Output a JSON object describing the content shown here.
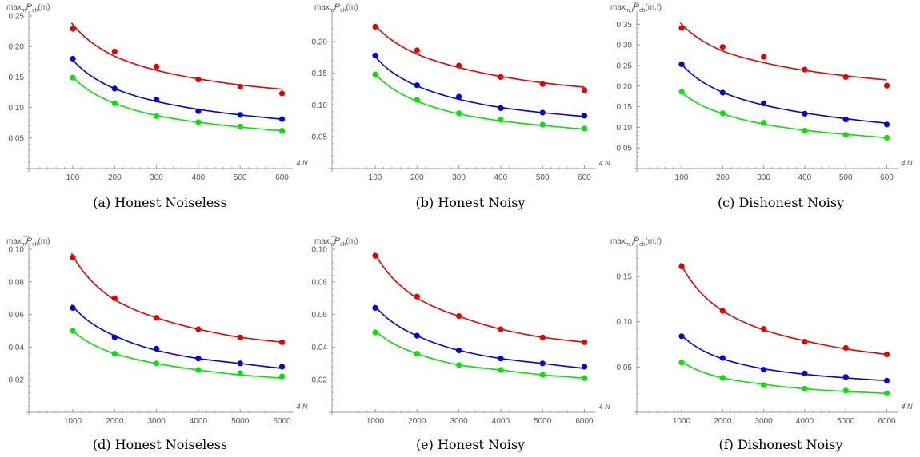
{
  "colors": {
    "red": "#e60000",
    "blue": "#0000e6",
    "green": "#00e600",
    "axis": "#999999",
    "text": "#555555"
  },
  "chart_data": [
    {
      "type": "scatter",
      "panel": "a",
      "caption": "(a) Honest Noiseless",
      "ylabel": {
        "pre": "max",
        "sub": "m",
        "main": "P",
        "overbar": false,
        "sub2": "ch",
        "post": "(m)"
      },
      "xlabel": "4 N",
      "x": [
        100,
        200,
        300,
        400,
        500,
        600
      ],
      "xticks": [
        100,
        200,
        300,
        400,
        500,
        600
      ],
      "yticks": [
        0.05,
        0.1,
        0.15,
        0.2,
        0.25
      ],
      "ytick_labels": [
        "0.05",
        "0.10",
        "0.15",
        "0.20",
        "0.25"
      ],
      "xlim": [
        0,
        640
      ],
      "ylim": [
        0,
        0.25
      ],
      "series": [
        {
          "color": "red",
          "values": [
            0.229,
            0.192,
            0.167,
            0.146,
            0.134,
            0.123
          ],
          "fit": [
            0.236,
            0.184,
            0.161,
            0.147,
            0.137,
            0.13
          ]
        },
        {
          "color": "blue",
          "values": [
            0.18,
            0.131,
            0.113,
            0.094,
            0.088,
            0.081
          ],
          "fit": [
            0.178,
            0.131,
            0.11,
            0.097,
            0.088,
            0.081
          ]
        },
        {
          "color": "green",
          "values": [
            0.149,
            0.107,
            0.086,
            0.076,
            0.069,
            0.062
          ],
          "fit": [
            0.15,
            0.107,
            0.087,
            0.076,
            0.068,
            0.062
          ]
        }
      ]
    },
    {
      "type": "scatter",
      "panel": "b",
      "caption": "(b) Honest Noisy",
      "ylabel": {
        "pre": "max",
        "sub": "m",
        "main": "P",
        "overbar": false,
        "sub2": "ch",
        "post": "(m)"
      },
      "xlabel": "4 N",
      "x": [
        100,
        200,
        300,
        400,
        500,
        600
      ],
      "xticks": [
        100,
        200,
        300,
        400,
        500,
        600
      ],
      "yticks": [
        0.05,
        0.1,
        0.15,
        0.2
      ],
      "ytick_labels": [
        "0.05",
        "0.10",
        "0.15",
        "0.20"
      ],
      "xlim": [
        0,
        640
      ],
      "ylim": [
        0,
        0.24
      ],
      "series": [
        {
          "color": "red",
          "values": [
            0.223,
            0.186,
            0.162,
            0.144,
            0.133,
            0.123
          ],
          "fit": [
            0.225,
            0.18,
            0.159,
            0.145,
            0.135,
            0.128
          ]
        },
        {
          "color": "blue",
          "values": [
            0.178,
            0.131,
            0.113,
            0.095,
            0.088,
            0.083
          ],
          "fit": [
            0.176,
            0.13,
            0.109,
            0.096,
            0.088,
            0.082
          ]
        },
        {
          "color": "green",
          "values": [
            0.148,
            0.108,
            0.087,
            0.077,
            0.069,
            0.063
          ],
          "fit": [
            0.149,
            0.106,
            0.086,
            0.075,
            0.068,
            0.062
          ]
        }
      ]
    },
    {
      "type": "scatter",
      "panel": "c",
      "caption": "(c) Dishonest Noisy",
      "ylabel": {
        "pre": "max",
        "sub": "m,f",
        "main": "P",
        "overbar": true,
        "sub2": "ch",
        "post": "(m,f)"
      },
      "xlabel": "4 N",
      "x": [
        100,
        200,
        300,
        400,
        500,
        600
      ],
      "xticks": [
        100,
        200,
        300,
        400,
        500,
        600
      ],
      "yticks": [
        0.05,
        0.1,
        0.15,
        0.2,
        0.25,
        0.3,
        0.35
      ],
      "ytick_labels": [
        "0.05",
        "0.10",
        "0.15",
        "0.20",
        "0.25",
        "0.30",
        "0.35"
      ],
      "xlim": [
        0,
        640
      ],
      "ylim": [
        0,
        0.37
      ],
      "series": [
        {
          "color": "red",
          "values": [
            0.341,
            0.295,
            0.271,
            0.24,
            0.222,
            0.201
          ],
          "fit": [
            0.35,
            0.285,
            0.257,
            0.238,
            0.225,
            0.215
          ]
        },
        {
          "color": "blue",
          "values": [
            0.253,
            0.184,
            0.158,
            0.133,
            0.119,
            0.107
          ],
          "fit": [
            0.253,
            0.185,
            0.154,
            0.135,
            0.121,
            0.11
          ]
        },
        {
          "color": "green",
          "values": [
            0.186,
            0.134,
            0.111,
            0.092,
            0.082,
            0.075
          ],
          "fit": [
            0.185,
            0.133,
            0.108,
            0.093,
            0.083,
            0.075
          ]
        }
      ]
    },
    {
      "type": "scatter",
      "panel": "d",
      "caption": "(d) Honest Noiseless",
      "ylabel": {
        "pre": "max",
        "sub": "m",
        "main": "P",
        "overbar": true,
        "sub2": "ch",
        "post": "(m)"
      },
      "xlabel": "4 N",
      "x": [
        1000,
        2000,
        3000,
        4000,
        5000,
        6000
      ],
      "xticks": [
        1000,
        2000,
        3000,
        4000,
        5000,
        6000
      ],
      "yticks": [
        0.02,
        0.04,
        0.06,
        0.08,
        0.1
      ],
      "ytick_labels": [
        "0.02",
        "0.04",
        "0.06",
        "0.08",
        "0.10"
      ],
      "xlim": [
        0,
        6400
      ],
      "ylim": [
        0,
        0.1
      ],
      "series": [
        {
          "color": "red",
          "values": [
            0.095,
            0.07,
            0.058,
            0.051,
            0.046,
            0.043
          ],
          "fit": [
            0.096,
            0.069,
            0.058,
            0.051,
            0.046,
            0.043
          ]
        },
        {
          "color": "blue",
          "values": [
            0.064,
            0.046,
            0.039,
            0.033,
            0.03,
            0.028
          ],
          "fit": [
            0.065,
            0.047,
            0.038,
            0.033,
            0.03,
            0.027
          ]
        },
        {
          "color": "green",
          "values": [
            0.05,
            0.036,
            0.03,
            0.026,
            0.024,
            0.022
          ],
          "fit": [
            0.05,
            0.036,
            0.03,
            0.026,
            0.023,
            0.021
          ]
        }
      ]
    },
    {
      "type": "scatter",
      "panel": "e",
      "caption": "(e) Honest Noisy",
      "ylabel": {
        "pre": "max",
        "sub": "m",
        "main": "P",
        "overbar": true,
        "sub2": "ch",
        "post": "(m)"
      },
      "xlabel": "4 N",
      "x": [
        1000,
        2000,
        3000,
        4000,
        5000,
        6000
      ],
      "xticks": [
        1000,
        2000,
        3000,
        4000,
        5000,
        6000
      ],
      "yticks": [
        0.02,
        0.04,
        0.06,
        0.08,
        0.1
      ],
      "ytick_labels": [
        "0.02",
        "0.04",
        "0.06",
        "0.08",
        "0.10"
      ],
      "xlim": [
        0,
        6400
      ],
      "ylim": [
        0,
        0.1
      ],
      "series": [
        {
          "color": "red",
          "values": [
            0.096,
            0.071,
            0.059,
            0.051,
            0.046,
            0.043
          ],
          "fit": [
            0.097,
            0.07,
            0.059,
            0.051,
            0.046,
            0.043
          ]
        },
        {
          "color": "blue",
          "values": [
            0.064,
            0.047,
            0.038,
            0.033,
            0.03,
            0.028
          ],
          "fit": [
            0.065,
            0.047,
            0.038,
            0.033,
            0.03,
            0.027
          ]
        },
        {
          "color": "green",
          "values": [
            0.049,
            0.036,
            0.029,
            0.026,
            0.023,
            0.021
          ],
          "fit": [
            0.05,
            0.036,
            0.029,
            0.026,
            0.023,
            0.021
          ]
        }
      ]
    },
    {
      "type": "scatter",
      "panel": "f",
      "caption": "(f) Dishonest Noisy",
      "ylabel": {
        "pre": "max",
        "sub": "m,f",
        "main": "P",
        "overbar": true,
        "sub2": "ch",
        "post": "(m,f)"
      },
      "xlabel": "4 N",
      "x": [
        1000,
        2000,
        3000,
        4000,
        5000,
        6000
      ],
      "xticks": [
        1000,
        2000,
        3000,
        4000,
        5000,
        6000
      ],
      "yticks": [
        0.05,
        0.1,
        0.15
      ],
      "ytick_labels": [
        "0.05",
        "0.10",
        "0.15"
      ],
      "xlim": [
        0,
        6400
      ],
      "ylim": [
        0,
        0.18
      ],
      "series": [
        {
          "color": "red",
          "values": [
            0.161,
            0.112,
            0.092,
            0.078,
            0.071,
            0.064
          ],
          "fit": [
            0.162,
            0.112,
            0.091,
            0.079,
            0.07,
            0.064
          ]
        },
        {
          "color": "blue",
          "values": [
            0.084,
            0.06,
            0.047,
            0.043,
            0.039,
            0.035
          ],
          "fit": [
            0.085,
            0.059,
            0.048,
            0.042,
            0.038,
            0.035
          ]
        },
        {
          "color": "green",
          "values": [
            0.055,
            0.038,
            0.03,
            0.026,
            0.024,
            0.021
          ],
          "fit": [
            0.056,
            0.038,
            0.031,
            0.026,
            0.023,
            0.021
          ]
        }
      ]
    }
  ]
}
